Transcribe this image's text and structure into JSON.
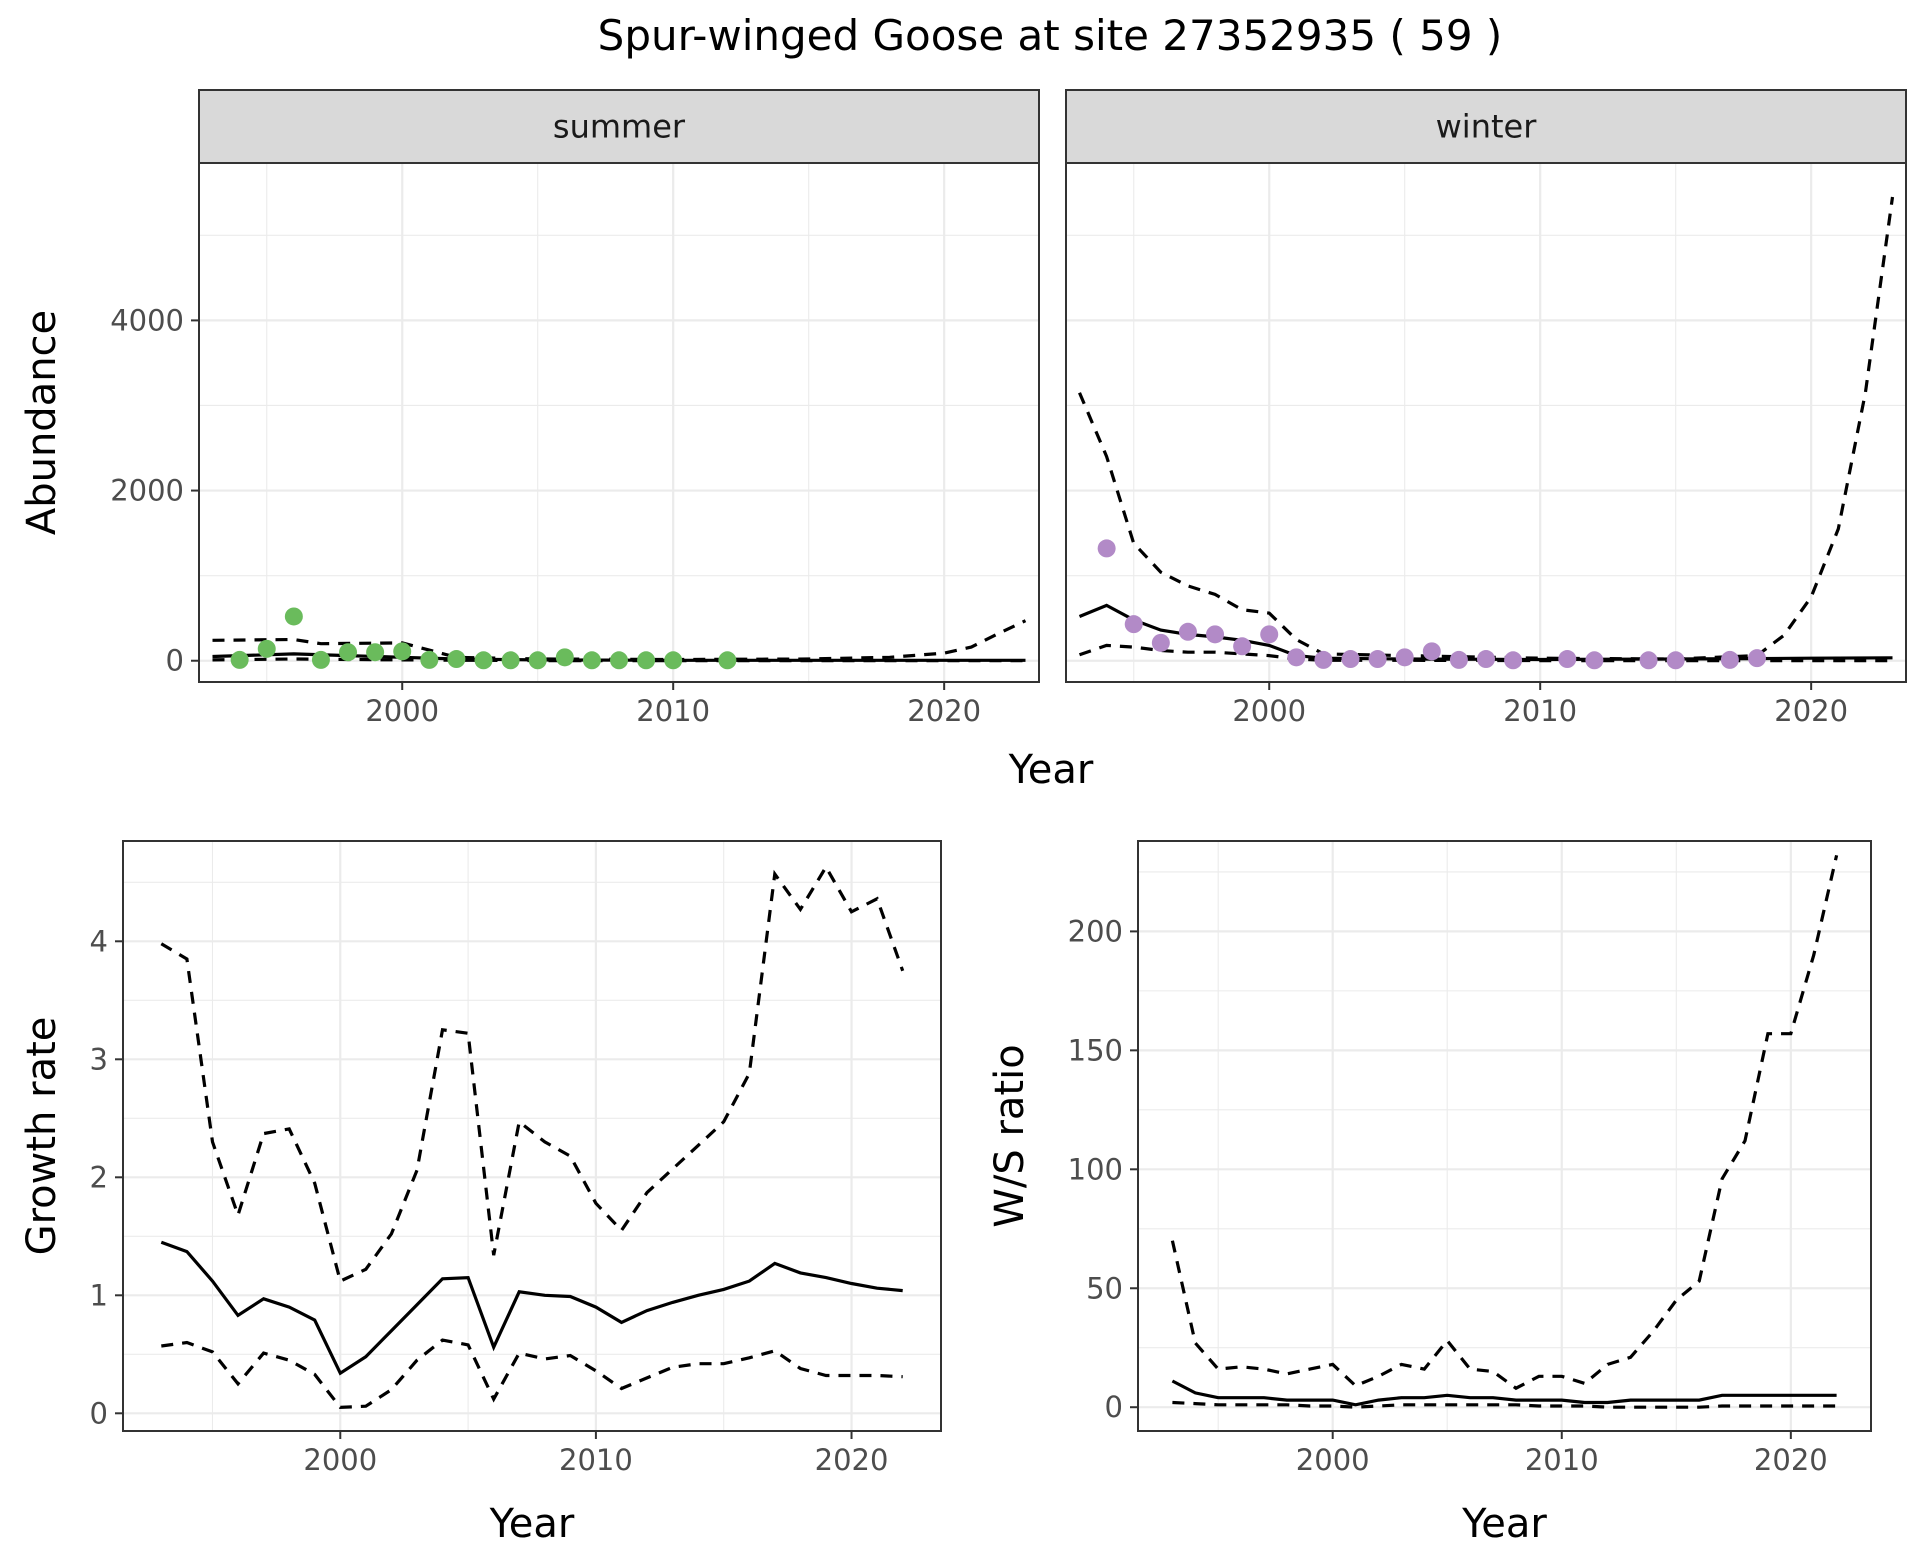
{
  "title": "Spur-winged Goose at site 27352935 ( 59 )",
  "colors": {
    "summer": "#6abb5c",
    "winter": "#b28ac7",
    "line": "#000000"
  },
  "chart_data": [
    {
      "type": "line",
      "facet": "summer",
      "xlabel": "Year",
      "ylabel": "Abundance",
      "xlim": [
        1992.5,
        2023.5
      ],
      "ylim": [
        -250,
        5850
      ],
      "xticks": [
        2000,
        2010,
        2020
      ],
      "yticks": [
        0,
        2000,
        4000
      ],
      "points": {
        "x": [
          1994,
          1995,
          1996,
          1997,
          1998,
          1999,
          2000,
          2001,
          2002,
          2003,
          2004,
          2005,
          2006,
          2007,
          2008,
          2009,
          2010,
          2012
        ],
        "y": [
          10,
          140,
          520,
          10,
          100,
          100,
          110,
          10,
          20,
          5,
          5,
          5,
          40,
          5,
          5,
          5,
          5,
          5
        ]
      },
      "series": [
        {
          "role": "estimate",
          "x": [
            1993,
            1996,
            1998,
            2000,
            2002,
            2005,
            2010,
            2015,
            2020,
            2023
          ],
          "y": [
            50,
            80,
            60,
            40,
            20,
            10,
            5,
            5,
            5,
            5
          ]
        },
        {
          "role": "upper",
          "x": [
            1993,
            1996,
            1997,
            2000,
            2002,
            2005,
            2010,
            2015,
            2018,
            2020,
            2021,
            2022,
            2023
          ],
          "y": [
            240,
            250,
            200,
            210,
            40,
            20,
            15,
            20,
            40,
            90,
            160,
            320,
            470
          ]
        },
        {
          "role": "lower",
          "x": [
            1993,
            1996,
            2000,
            2005,
            2010,
            2023
          ],
          "y": [
            10,
            20,
            10,
            2,
            0,
            0
          ]
        }
      ]
    },
    {
      "type": "line",
      "facet": "winter",
      "xlabel": "Year",
      "ylabel": "Abundance",
      "xlim": [
        1992.5,
        2023.5
      ],
      "ylim": [
        -250,
        5850
      ],
      "xticks": [
        2000,
        2010,
        2020
      ],
      "yticks": [
        0,
        2000,
        4000
      ],
      "points": {
        "x": [
          1994,
          1995,
          1996,
          1997,
          1998,
          1999,
          2000,
          2001,
          2002,
          2003,
          2004,
          2005,
          2006,
          2007,
          2008,
          2009,
          2011,
          2012,
          2014,
          2015,
          2017,
          2018
        ],
        "y": [
          1320,
          430,
          210,
          340,
          310,
          170,
          310,
          40,
          10,
          20,
          20,
          40,
          110,
          10,
          20,
          5,
          20,
          5,
          5,
          5,
          10,
          30
        ]
      },
      "series": [
        {
          "role": "estimate",
          "x": [
            1993,
            1994,
            1995,
            1996,
            1997,
            1998,
            1999,
            2000,
            2001,
            2002,
            2005,
            2010,
            2015,
            2018,
            2020,
            2023
          ],
          "y": [
            520,
            650,
            480,
            360,
            310,
            280,
            240,
            180,
            60,
            30,
            20,
            15,
            20,
            25,
            30,
            35
          ]
        },
        {
          "role": "upper",
          "x": [
            1993,
            1994,
            1995,
            1996,
            1997,
            1998,
            1999,
            2000,
            2001,
            2002,
            2005,
            2010,
            2015,
            2018,
            2019,
            2020,
            2021,
            2022,
            2023
          ],
          "y": [
            3150,
            2400,
            1380,
            1040,
            880,
            780,
            600,
            560,
            250,
            80,
            60,
            30,
            20,
            60,
            300,
            750,
            1550,
            3150,
            5450
          ]
        },
        {
          "role": "lower",
          "x": [
            1993,
            1994,
            1995,
            1996,
            1997,
            1998,
            1999,
            2000,
            2001,
            2002,
            2005,
            2010,
            2023
          ],
          "y": [
            70,
            180,
            160,
            120,
            100,
            100,
            80,
            60,
            20,
            5,
            5,
            2,
            0
          ]
        }
      ]
    },
    {
      "type": "line",
      "xlabel": "Year",
      "ylabel": "Growth rate",
      "xlim": [
        1991.5,
        2023.5
      ],
      "ylim": [
        -0.15,
        4.85
      ],
      "xticks": [
        2000,
        2010,
        2020
      ],
      "yticks": [
        0,
        1,
        2,
        3,
        4
      ],
      "series": [
        {
          "role": "estimate",
          "x": [
            1993,
            1994,
            1995,
            1996,
            1997,
            1998,
            1999,
            2000,
            2001,
            2002,
            2003,
            2004,
            2005,
            2006,
            2007,
            2008,
            2009,
            2010,
            2011,
            2012,
            2013,
            2014,
            2015,
            2016,
            2017,
            2018,
            2019,
            2020,
            2021,
            2022
          ],
          "y": [
            1.45,
            1.37,
            1.12,
            0.83,
            0.97,
            0.9,
            0.79,
            0.34,
            0.48,
            0.7,
            0.92,
            1.14,
            1.15,
            0.56,
            1.03,
            1.0,
            0.99,
            0.9,
            0.77,
            0.87,
            0.94,
            1.0,
            1.05,
            1.12,
            1.27,
            1.19,
            1.15,
            1.1,
            1.06,
            1.04
          ]
        },
        {
          "role": "upper",
          "x": [
            1993,
            1994,
            1995,
            1996,
            1997,
            1998,
            1999,
            2000,
            2001,
            2002,
            2003,
            2004,
            2005,
            2006,
            2007,
            2008,
            2009,
            2010,
            2011,
            2012,
            2013,
            2014,
            2015,
            2016,
            2017,
            2018,
            2019,
            2020,
            2021,
            2022
          ],
          "y": [
            3.98,
            3.85,
            2.3,
            1.68,
            2.37,
            2.41,
            1.95,
            1.12,
            1.22,
            1.52,
            2.06,
            3.25,
            3.22,
            1.34,
            2.47,
            2.3,
            2.18,
            1.78,
            1.55,
            1.87,
            2.07,
            2.27,
            2.47,
            2.88,
            4.57,
            4.27,
            4.63,
            4.25,
            4.36,
            3.75
          ]
        },
        {
          "role": "lower",
          "x": [
            1993,
            1994,
            1995,
            1996,
            1997,
            1998,
            1999,
            2000,
            2001,
            2002,
            2003,
            2004,
            2005,
            2006,
            2007,
            2008,
            2009,
            2010,
            2011,
            2012,
            2013,
            2014,
            2015,
            2016,
            2017,
            2018,
            2019,
            2020,
            2021,
            2022
          ],
          "y": [
            0.57,
            0.6,
            0.52,
            0.25,
            0.51,
            0.45,
            0.33,
            0.05,
            0.06,
            0.2,
            0.45,
            0.62,
            0.58,
            0.12,
            0.51,
            0.46,
            0.49,
            0.36,
            0.21,
            0.3,
            0.39,
            0.42,
            0.42,
            0.47,
            0.53,
            0.38,
            0.32,
            0.32,
            0.32,
            0.31
          ]
        }
      ]
    },
    {
      "type": "line",
      "xlabel": "Year",
      "ylabel": "W/S ratio",
      "xlim": [
        1991.5,
        2023.5
      ],
      "ylim": [
        -10,
        238
      ],
      "xticks": [
        2000,
        2010,
        2020
      ],
      "yticks": [
        0,
        50,
        100,
        150,
        200
      ],
      "series": [
        {
          "role": "estimate",
          "x": [
            1993,
            1994,
            1995,
            1996,
            1997,
            1998,
            1999,
            2000,
            2001,
            2002,
            2003,
            2004,
            2005,
            2006,
            2007,
            2008,
            2009,
            2010,
            2011,
            2012,
            2013,
            2014,
            2015,
            2016,
            2017,
            2018,
            2019,
            2020,
            2021,
            2022
          ],
          "y": [
            11,
            6,
            4,
            4,
            4,
            3,
            3,
            3,
            1,
            3,
            4,
            4,
            5,
            4,
            4,
            3,
            3,
            3,
            2,
            2,
            3,
            3,
            3,
            3,
            5,
            5,
            5,
            5,
            5,
            5
          ]
        },
        {
          "role": "upper",
          "x": [
            1993,
            1994,
            1995,
            1996,
            1997,
            1998,
            1999,
            2000,
            2001,
            2002,
            2003,
            2004,
            2005,
            2006,
            2007,
            2008,
            2009,
            2010,
            2011,
            2012,
            2013,
            2014,
            2015,
            2016,
            2017,
            2018,
            2019,
            2020,
            2021,
            2022
          ],
          "y": [
            70,
            27,
            16,
            17,
            16,
            14,
            16,
            18,
            9,
            13,
            18,
            16,
            28,
            16,
            15,
            8,
            13,
            13,
            10,
            18,
            21,
            32,
            45,
            53,
            96,
            112,
            157,
            157,
            190,
            232
          ]
        },
        {
          "role": "lower",
          "x": [
            1993,
            1994,
            1995,
            1996,
            1997,
            1998,
            1999,
            2000,
            2001,
            2002,
            2003,
            2004,
            2005,
            2006,
            2007,
            2008,
            2009,
            2010,
            2011,
            2012,
            2013,
            2014,
            2015,
            2016,
            2017,
            2018,
            2019,
            2020,
            2021,
            2022
          ],
          "y": [
            2,
            1.5,
            1,
            1,
            1,
            1,
            0.5,
            0.5,
            0,
            0.5,
            1,
            1,
            1,
            1,
            1,
            1,
            0.5,
            0.5,
            0.5,
            0,
            0,
            0,
            0,
            0,
            0.5,
            0.5,
            0.5,
            0.5,
            0.5,
            0.5
          ]
        }
      ]
    }
  ]
}
